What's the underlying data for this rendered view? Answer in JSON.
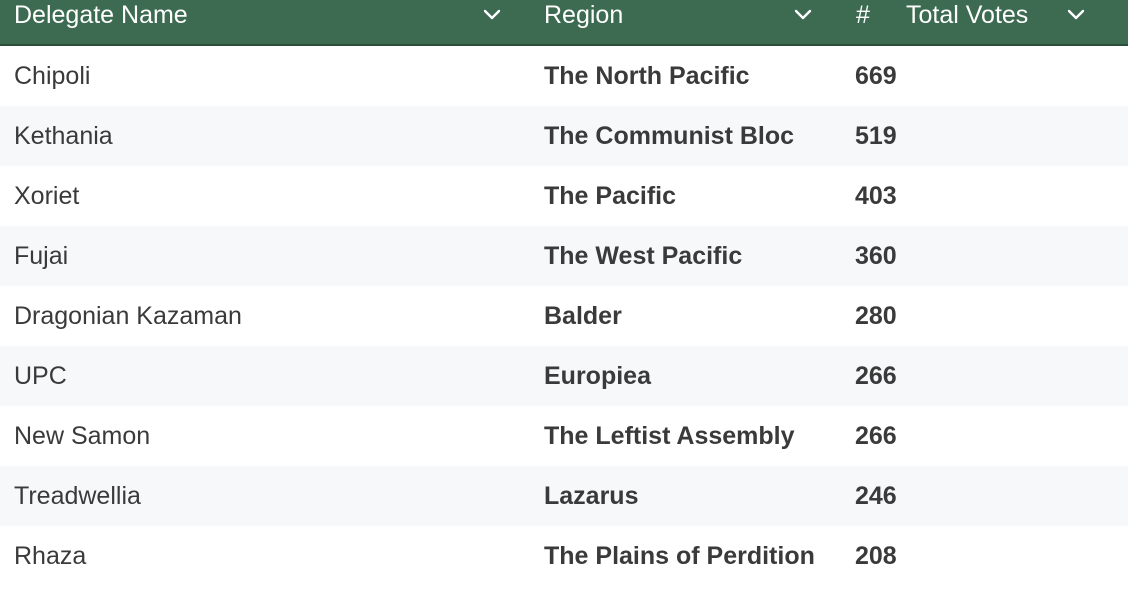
{
  "header": {
    "name_label": "Delegate Name",
    "region_label": "Region",
    "hash_symbol": "#",
    "votes_label": "Total Votes",
    "chevron_icon": "chevron-down-icon",
    "header_bg": "#3d6b52"
  },
  "rows": [
    {
      "name": "Chipoli",
      "region": "The North Pacific",
      "votes": "669"
    },
    {
      "name": "Kethania",
      "region": "The Communist Bloc",
      "votes": "519"
    },
    {
      "name": "Xoriet",
      "region": "The Pacific",
      "votes": "403"
    },
    {
      "name": "Fujai",
      "region": "The West Pacific",
      "votes": "360"
    },
    {
      "name": "Dragonian Kazaman",
      "region": "Balder",
      "votes": "280"
    },
    {
      "name": "UPC",
      "region": "Europiea",
      "votes": "266"
    },
    {
      "name": "New Samon",
      "region": "The Leftist Assembly",
      "votes": "266"
    },
    {
      "name": "Treadwellia",
      "region": "Lazarus",
      "votes": "246"
    },
    {
      "name": "Rhaza",
      "region": "The Plains of Perdition",
      "votes": "208"
    }
  ]
}
